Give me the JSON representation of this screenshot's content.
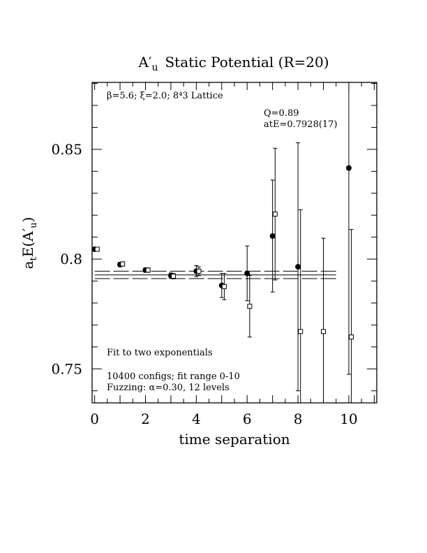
{
  "chart_data": {
    "type": "scatter",
    "title": "A′u  Static Potential (R=20)",
    "xlabel": "time separation",
    "ylabel": "atE(A′u)",
    "xlim": [
      -0.1,
      11.1
    ],
    "ylim": [
      0.7345,
      0.8805
    ],
    "x_ticks": [
      0,
      2,
      4,
      6,
      8,
      10
    ],
    "x_tick_labels": [
      "0",
      "2",
      "4",
      "6",
      "8",
      "10"
    ],
    "y_ticks": [
      0.75,
      0.8,
      0.85
    ],
    "y_tick_labels": [
      "0.75",
      "0.8",
      "0.85"
    ],
    "grid": false,
    "annotations": {
      "lattice": "β=5.6; ξ=2.0; 8⁴3 Lattice",
      "q": "Q=0.89",
      "ate": "atE=0.7928(17)",
      "fit": "Fit to two exponentials",
      "configs": "10400 configs; fit range 0-10",
      "fuzzing": "Fuzzing: α=0.30, 12 levels"
    },
    "fit": {
      "value": 0.7928,
      "error": 0.0017,
      "x_range": [
        0,
        9.5
      ]
    },
    "series": [
      {
        "marker": "filled-circle",
        "points": [
          {
            "x": 0,
            "y": 0.8045,
            "err": 0.0005
          },
          {
            "x": 1,
            "y": 0.7975,
            "err": 0.001
          },
          {
            "x": 2,
            "y": 0.795,
            "err": 0.001
          },
          {
            "x": 3,
            "y": 0.7925,
            "err": 0.0012
          },
          {
            "x": 4,
            "y": 0.7945,
            "err": 0.0025
          },
          {
            "x": 5,
            "y": 0.788,
            "err": 0.0055
          },
          {
            "x": 6,
            "y": 0.7935,
            "err": 0.0125
          },
          {
            "x": 7,
            "y": 0.8105,
            "err": 0.0255
          },
          {
            "x": 8,
            "y": 0.7965,
            "err": 0.0565
          },
          {
            "x": 10,
            "y": 0.8415,
            "err": 0.094
          }
        ]
      },
      {
        "marker": "open-square",
        "points": [
          {
            "x": 0.1,
            "y": 0.8045,
            "err": 0.0005
          },
          {
            "x": 1.1,
            "y": 0.7978,
            "err": 0.001
          },
          {
            "x": 2.1,
            "y": 0.795,
            "err": 0.001
          },
          {
            "x": 3.1,
            "y": 0.7922,
            "err": 0.0012
          },
          {
            "x": 4.1,
            "y": 0.7945,
            "err": 0.002
          },
          {
            "x": 5.1,
            "y": 0.7875,
            "err": 0.006
          },
          {
            "x": 6.1,
            "y": 0.7785,
            "err": 0.014
          },
          {
            "x": 7.1,
            "y": 0.8205,
            "err": 0.03
          },
          {
            "x": 8.1,
            "y": 0.767,
            "err": 0.0555
          },
          {
            "x": 9.0,
            "y": 0.767,
            "err": 0.0425
          },
          {
            "x": 10.1,
            "y": 0.7645,
            "err": 0.049
          }
        ]
      }
    ]
  }
}
